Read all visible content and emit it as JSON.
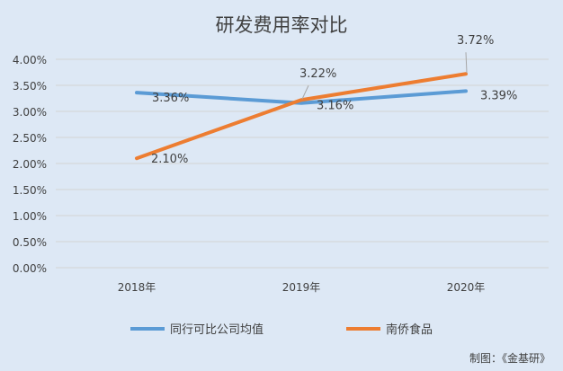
{
  "chart_data": {
    "type": "line",
    "title": "研发费用率对比",
    "categories": [
      "2018年",
      "2019年",
      "2020年"
    ],
    "series": [
      {
        "name": "同行可比公司均值",
        "values": [
          3.36,
          3.16,
          3.39
        ],
        "labels": [
          "3.36%",
          "3.16%",
          "3.39%"
        ],
        "color": "#5b9bd5"
      },
      {
        "name": "南侨食品",
        "values": [
          2.1,
          3.22,
          3.72
        ],
        "labels": [
          "2.10%",
          "3.22%",
          "3.72%"
        ],
        "color": "#ed7d31"
      }
    ],
    "yticks": [
      "0.00%",
      "0.50%",
      "1.00%",
      "1.50%",
      "2.00%",
      "2.50%",
      "3.00%",
      "3.50%",
      "4.00%"
    ],
    "ylim": [
      0,
      4
    ],
    "xlabel": "",
    "ylabel": "",
    "grid": true,
    "legend": "bottom"
  },
  "source": "制图：《金基研》"
}
